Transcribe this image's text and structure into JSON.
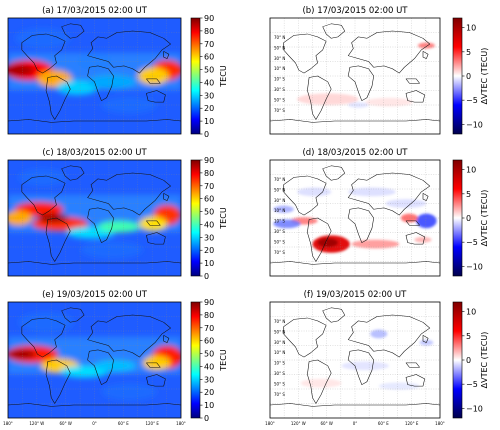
{
  "figure": {
    "panels": [
      {
        "id": "a",
        "title": "(a) 17/03/2015 02:00 UT",
        "kind": "tec",
        "day": 17
      },
      {
        "id": "b",
        "title": "(b) 17/03/2015 02:00 UT",
        "kind": "dtec",
        "day": 17
      },
      {
        "id": "c",
        "title": "(c) 18/03/2015 02:00 UT",
        "kind": "tec",
        "day": 18
      },
      {
        "id": "d",
        "title": "(d) 18/03/2015 02:00 UT",
        "kind": "dtec",
        "day": 18
      },
      {
        "id": "e",
        "title": "(e) 19/03/2015 02:00 UT",
        "kind": "tec",
        "day": 19
      },
      {
        "id": "f",
        "title": "(f) 19/03/2015 02:00 UT",
        "kind": "dtec",
        "day": 19
      }
    ],
    "tec_colorbar": {
      "label": "TECU",
      "ticks": [
        "0",
        "10",
        "20",
        "30",
        "40",
        "50",
        "60",
        "70",
        "80",
        "90"
      ],
      "range": [
        0,
        90
      ],
      "colormap": "jet"
    },
    "dtec_colorbar": {
      "label": "ΔVTEC (TECU)",
      "ticks": [
        "−10",
        "−5",
        "0",
        "5",
        "10"
      ],
      "range": [
        -12,
        12
      ],
      "colormap": "seismic"
    },
    "x_ticks": [
      "180°",
      "120° W",
      "60° W",
      "0°",
      "60° E",
      "120° E",
      "180°"
    ],
    "y_ticks": [
      "70° N",
      "50° N",
      "30° N",
      "10° N",
      "10° S",
      "30° S",
      "50° S",
      "70° S"
    ],
    "colors": {
      "jet_stops": [
        "#00007f",
        "#0000ff",
        "#007fff",
        "#00ffff",
        "#7fff7f",
        "#ffff00",
        "#ff7f00",
        "#ff0000",
        "#7f0000"
      ],
      "seismic_stops": [
        "#00004c",
        "#0000ff",
        "#ffffff",
        "#ff0000",
        "#7f0000"
      ]
    }
  }
}
